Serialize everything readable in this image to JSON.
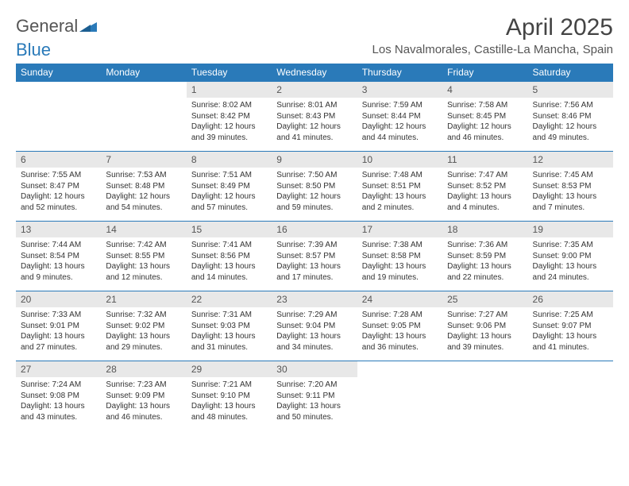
{
  "logo": {
    "general": "General",
    "blue": "Blue"
  },
  "title": "April 2025",
  "location": "Los Navalmorales, Castille-La Mancha, Spain",
  "colors": {
    "brand": "#2a7ab9",
    "header_bg": "#2a7ab9",
    "header_text": "#ffffff",
    "daynum_bg": "#e8e8e8",
    "text": "#333333",
    "divider": "#2a7ab9"
  },
  "weekdays": [
    "Sunday",
    "Monday",
    "Tuesday",
    "Wednesday",
    "Thursday",
    "Friday",
    "Saturday"
  ],
  "weeks": [
    [
      null,
      null,
      {
        "n": "1",
        "sr": "8:02 AM",
        "ss": "8:42 PM",
        "dl": "12 hours and 39 minutes."
      },
      {
        "n": "2",
        "sr": "8:01 AM",
        "ss": "8:43 PM",
        "dl": "12 hours and 41 minutes."
      },
      {
        "n": "3",
        "sr": "7:59 AM",
        "ss": "8:44 PM",
        "dl": "12 hours and 44 minutes."
      },
      {
        "n": "4",
        "sr": "7:58 AM",
        "ss": "8:45 PM",
        "dl": "12 hours and 46 minutes."
      },
      {
        "n": "5",
        "sr": "7:56 AM",
        "ss": "8:46 PM",
        "dl": "12 hours and 49 minutes."
      }
    ],
    [
      {
        "n": "6",
        "sr": "7:55 AM",
        "ss": "8:47 PM",
        "dl": "12 hours and 52 minutes."
      },
      {
        "n": "7",
        "sr": "7:53 AM",
        "ss": "8:48 PM",
        "dl": "12 hours and 54 minutes."
      },
      {
        "n": "8",
        "sr": "7:51 AM",
        "ss": "8:49 PM",
        "dl": "12 hours and 57 minutes."
      },
      {
        "n": "9",
        "sr": "7:50 AM",
        "ss": "8:50 PM",
        "dl": "12 hours and 59 minutes."
      },
      {
        "n": "10",
        "sr": "7:48 AM",
        "ss": "8:51 PM",
        "dl": "13 hours and 2 minutes."
      },
      {
        "n": "11",
        "sr": "7:47 AM",
        "ss": "8:52 PM",
        "dl": "13 hours and 4 minutes."
      },
      {
        "n": "12",
        "sr": "7:45 AM",
        "ss": "8:53 PM",
        "dl": "13 hours and 7 minutes."
      }
    ],
    [
      {
        "n": "13",
        "sr": "7:44 AM",
        "ss": "8:54 PM",
        "dl": "13 hours and 9 minutes."
      },
      {
        "n": "14",
        "sr": "7:42 AM",
        "ss": "8:55 PM",
        "dl": "13 hours and 12 minutes."
      },
      {
        "n": "15",
        "sr": "7:41 AM",
        "ss": "8:56 PM",
        "dl": "13 hours and 14 minutes."
      },
      {
        "n": "16",
        "sr": "7:39 AM",
        "ss": "8:57 PM",
        "dl": "13 hours and 17 minutes."
      },
      {
        "n": "17",
        "sr": "7:38 AM",
        "ss": "8:58 PM",
        "dl": "13 hours and 19 minutes."
      },
      {
        "n": "18",
        "sr": "7:36 AM",
        "ss": "8:59 PM",
        "dl": "13 hours and 22 minutes."
      },
      {
        "n": "19",
        "sr": "7:35 AM",
        "ss": "9:00 PM",
        "dl": "13 hours and 24 minutes."
      }
    ],
    [
      {
        "n": "20",
        "sr": "7:33 AM",
        "ss": "9:01 PM",
        "dl": "13 hours and 27 minutes."
      },
      {
        "n": "21",
        "sr": "7:32 AM",
        "ss": "9:02 PM",
        "dl": "13 hours and 29 minutes."
      },
      {
        "n": "22",
        "sr": "7:31 AM",
        "ss": "9:03 PM",
        "dl": "13 hours and 31 minutes."
      },
      {
        "n": "23",
        "sr": "7:29 AM",
        "ss": "9:04 PM",
        "dl": "13 hours and 34 minutes."
      },
      {
        "n": "24",
        "sr": "7:28 AM",
        "ss": "9:05 PM",
        "dl": "13 hours and 36 minutes."
      },
      {
        "n": "25",
        "sr": "7:27 AM",
        "ss": "9:06 PM",
        "dl": "13 hours and 39 minutes."
      },
      {
        "n": "26",
        "sr": "7:25 AM",
        "ss": "9:07 PM",
        "dl": "13 hours and 41 minutes."
      }
    ],
    [
      {
        "n": "27",
        "sr": "7:24 AM",
        "ss": "9:08 PM",
        "dl": "13 hours and 43 minutes."
      },
      {
        "n": "28",
        "sr": "7:23 AM",
        "ss": "9:09 PM",
        "dl": "13 hours and 46 minutes."
      },
      {
        "n": "29",
        "sr": "7:21 AM",
        "ss": "9:10 PM",
        "dl": "13 hours and 48 minutes."
      },
      {
        "n": "30",
        "sr": "7:20 AM",
        "ss": "9:11 PM",
        "dl": "13 hours and 50 minutes."
      },
      null,
      null,
      null
    ]
  ],
  "labels": {
    "sunrise": "Sunrise: ",
    "sunset": "Sunset: ",
    "daylight": "Daylight: "
  }
}
